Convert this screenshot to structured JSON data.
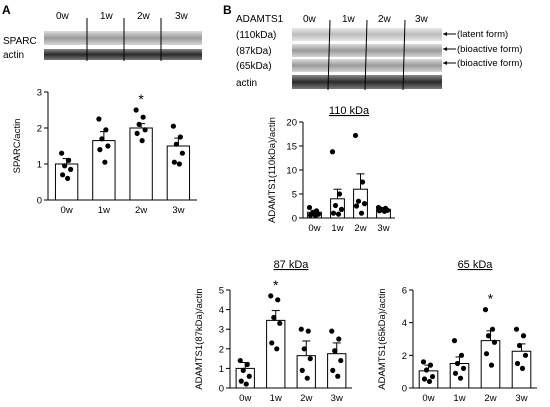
{
  "panels": {
    "a": {
      "letter": "A"
    },
    "b": {
      "letter": "B"
    }
  },
  "blots": {
    "a": {
      "timepoints": [
        "0w",
        "1w",
        "2w",
        "3w"
      ],
      "rows": [
        "SPARC",
        "actin"
      ]
    },
    "b": {
      "protein": "ADAMTS1",
      "timepoints": [
        "0w",
        "1w",
        "2w",
        "3w"
      ],
      "row_labels": [
        "(110kDa)",
        "(87kDa)",
        "(65kDa)",
        "actin"
      ],
      "annotations": [
        "(latent form)",
        "(bioactive form)",
        "(bioactive form)"
      ]
    }
  },
  "colors": {
    "bars": "#ffffff",
    "edges": "#000000",
    "dots": "#000000"
  },
  "chart_data": [
    {
      "id": "sparc",
      "type": "bar",
      "title": "",
      "ylabel": "SPARC/actin",
      "xlabel": "",
      "categories": [
        "0w",
        "1w",
        "2w",
        "3w"
      ],
      "values": [
        1.0,
        1.65,
        2.0,
        1.5
      ],
      "sem": [
        0.15,
        0.25,
        0.12,
        0.22
      ],
      "points": [
        [
          1.3,
          1.1,
          0.95,
          0.85,
          0.7,
          0.6
        ],
        [
          2.25,
          1.95,
          1.7,
          1.5,
          1.4,
          1.05
        ],
        [
          2.5,
          2.3,
          2.1,
          1.95,
          1.85,
          1.65
        ],
        [
          2.05,
          1.75,
          1.55,
          1.3,
          1.05,
          1.0
        ]
      ],
      "ylim": [
        0,
        3
      ],
      "yticks": [
        0,
        1,
        2,
        3
      ],
      "significance": [
        "",
        "",
        "*",
        ""
      ]
    },
    {
      "id": "adamts1_110",
      "type": "bar",
      "title": "110 kDa",
      "ylabel": "ADAMTS1(110kDa)/actin",
      "xlabel": "",
      "categories": [
        "0w",
        "1w",
        "2w",
        "3w"
      ],
      "values": [
        1.2,
        4.0,
        6.0,
        1.8
      ],
      "sem": [
        0.4,
        2.0,
        3.2,
        0.3
      ],
      "points": [
        [
          2.2,
          1.5,
          1.0,
          0.8,
          0.6,
          0.5
        ],
        [
          13.8,
          5.0,
          2.6,
          1.8,
          1.0,
          0.8
        ],
        [
          17.2,
          7.5,
          3.5,
          3.0,
          2.5,
          1.0
        ],
        [
          2.2,
          2.0,
          1.8,
          1.6,
          1.5,
          1.4
        ]
      ],
      "ylim": [
        0,
        20
      ],
      "yticks": [
        0,
        5,
        10,
        15,
        20
      ],
      "significance": [
        "",
        "",
        "",
        ""
      ]
    },
    {
      "id": "adamts1_87",
      "type": "bar",
      "title": "87 kDa",
      "ylabel": "ADAMTS1(87kDa)/actin",
      "xlabel": "",
      "categories": [
        "0w",
        "1w",
        "2w",
        "3w"
      ],
      "values": [
        1.0,
        3.45,
        1.65,
        1.75
      ],
      "sem": [
        0.3,
        0.5,
        0.75,
        0.55
      ],
      "points": [
        [
          1.4,
          1.2,
          0.9,
          0.6,
          0.35,
          0.2
        ],
        [
          4.7,
          4.5,
          3.6,
          3.3,
          2.3,
          2.0
        ],
        [
          3.0,
          2.9,
          2.0,
          1.5,
          0.9,
          0.5
        ],
        [
          2.9,
          2.5,
          1.9,
          1.4,
          0.9,
          0.6
        ]
      ],
      "ylim": [
        0,
        5
      ],
      "yticks": [
        0,
        1,
        2,
        3,
        4,
        5
      ],
      "significance": [
        "",
        "*",
        "",
        ""
      ]
    },
    {
      "id": "adamts1_65",
      "type": "bar",
      "title": "65 kDa",
      "ylabel": "ADAMTS1(65kDa)/actin",
      "xlabel": "",
      "categories": [
        "0w",
        "1w",
        "2w",
        "3w"
      ],
      "values": [
        1.05,
        1.5,
        2.9,
        2.25
      ],
      "sem": [
        0.35,
        0.4,
        0.6,
        0.45
      ],
      "points": [
        [
          1.6,
          1.4,
          1.1,
          0.7,
          0.55,
          0.4
        ],
        [
          2.9,
          2.0,
          1.5,
          1.2,
          0.9,
          0.6
        ],
        [
          4.8,
          3.6,
          3.2,
          2.8,
          2.1,
          1.4
        ],
        [
          3.6,
          3.2,
          2.6,
          2.0,
          1.5,
          1.2
        ]
      ],
      "ylim": [
        0,
        6
      ],
      "yticks": [
        0,
        2,
        4,
        6
      ],
      "significance": [
        "",
        "",
        "*",
        ""
      ]
    }
  ]
}
